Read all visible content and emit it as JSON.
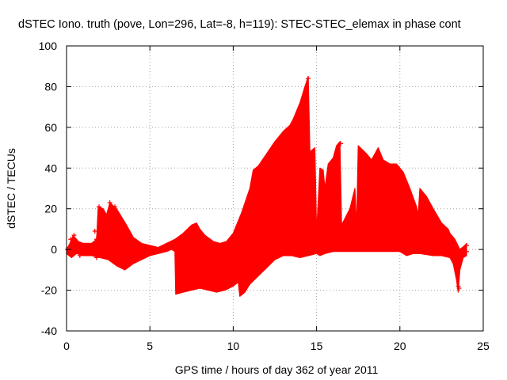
{
  "chart_data": {
    "type": "area",
    "title": "dSTEC Iono. truth (pove, Lon=296, Lat=-8, h=119): STEC-STEC_elemax in phase cont",
    "xlabel": "GPS time / hours of day 362 of year 2011",
    "ylabel": "dSTEC  / TECUs",
    "xlim": [
      0,
      25
    ],
    "ylim": [
      -40,
      100
    ],
    "xticks": [
      0,
      5,
      10,
      15,
      20,
      25
    ],
    "yticks": [
      -40,
      -20,
      0,
      20,
      40,
      60,
      80,
      100
    ],
    "grid": true,
    "color": "#ff0000",
    "series": [
      {
        "name": "dSTEC",
        "upper": [
          [
            0.0,
            0
          ],
          [
            0.2,
            3
          ],
          [
            0.4,
            7
          ],
          [
            0.7,
            4
          ],
          [
            1.0,
            3
          ],
          [
            1.5,
            3
          ],
          [
            1.8,
            5
          ],
          [
            1.9,
            21
          ],
          [
            2.2,
            20
          ],
          [
            2.4,
            17
          ],
          [
            2.6,
            23
          ],
          [
            3.0,
            20
          ],
          [
            3.3,
            16
          ],
          [
            3.6,
            12
          ],
          [
            4.0,
            6
          ],
          [
            4.5,
            3
          ],
          [
            5.0,
            2
          ],
          [
            5.5,
            1
          ],
          [
            6.0,
            3
          ],
          [
            6.5,
            5
          ],
          [
            7.0,
            8
          ],
          [
            7.5,
            12
          ],
          [
            7.8,
            13
          ],
          [
            8.0,
            10
          ],
          [
            8.3,
            7
          ],
          [
            8.8,
            4
          ],
          [
            9.2,
            3
          ],
          [
            9.6,
            4
          ],
          [
            10.0,
            8
          ],
          [
            10.5,
            18
          ],
          [
            11.0,
            30
          ],
          [
            11.2,
            39
          ],
          [
            11.5,
            41
          ],
          [
            12.0,
            47
          ],
          [
            12.5,
            53
          ],
          [
            13.0,
            58
          ],
          [
            13.4,
            61
          ],
          [
            13.6,
            64
          ],
          [
            14.0,
            72
          ],
          [
            14.3,
            80
          ],
          [
            14.5,
            85
          ],
          [
            14.6,
            48
          ],
          [
            14.9,
            50
          ],
          [
            15.0,
            8
          ],
          [
            15.2,
            40
          ],
          [
            15.4,
            39
          ],
          [
            15.5,
            30
          ],
          [
            15.7,
            42
          ],
          [
            16.0,
            45
          ],
          [
            16.2,
            51
          ],
          [
            16.4,
            53
          ],
          [
            16.5,
            12
          ],
          [
            17.0,
            20
          ],
          [
            17.3,
            30
          ],
          [
            17.4,
            10
          ],
          [
            17.5,
            51
          ],
          [
            18.0,
            47
          ],
          [
            18.3,
            44
          ],
          [
            18.7,
            50
          ],
          [
            19.0,
            44
          ],
          [
            19.4,
            42
          ],
          [
            19.8,
            42
          ],
          [
            20.2,
            38
          ],
          [
            20.6,
            30
          ],
          [
            21.0,
            21
          ],
          [
            21.1,
            17
          ],
          [
            21.2,
            30
          ],
          [
            21.6,
            26
          ],
          [
            22.0,
            20
          ],
          [
            22.5,
            13
          ],
          [
            22.9,
            10
          ],
          [
            23.0,
            8
          ],
          [
            23.3,
            5
          ],
          [
            23.6,
            0
          ],
          [
            23.9,
            2
          ],
          [
            24.0,
            3
          ]
        ],
        "lower": [
          [
            0.0,
            -2
          ],
          [
            0.3,
            -4
          ],
          [
            0.6,
            -2
          ],
          [
            1.0,
            -3
          ],
          [
            1.5,
            -3
          ],
          [
            2.0,
            -4
          ],
          [
            2.5,
            -5
          ],
          [
            3.0,
            -8
          ],
          [
            3.5,
            -10
          ],
          [
            4.0,
            -7
          ],
          [
            4.5,
            -5
          ],
          [
            5.0,
            -3
          ],
          [
            5.5,
            -2
          ],
          [
            6.0,
            -1
          ],
          [
            6.3,
            0
          ],
          [
            6.5,
            -1
          ],
          [
            6.55,
            -22
          ],
          [
            7.0,
            -21
          ],
          [
            7.5,
            -20
          ],
          [
            8.0,
            -19
          ],
          [
            8.5,
            -20
          ],
          [
            9.0,
            -21
          ],
          [
            9.5,
            -20
          ],
          [
            10.0,
            -18
          ],
          [
            10.3,
            -16
          ],
          [
            10.4,
            -23
          ],
          [
            10.7,
            -21
          ],
          [
            11.0,
            -17
          ],
          [
            11.5,
            -13
          ],
          [
            12.0,
            -9
          ],
          [
            12.5,
            -5
          ],
          [
            13.0,
            -3
          ],
          [
            13.5,
            -3
          ],
          [
            14.0,
            -4
          ],
          [
            14.5,
            -3
          ],
          [
            15.0,
            -2
          ],
          [
            15.2,
            -3
          ],
          [
            15.5,
            -2
          ],
          [
            16.0,
            -1
          ],
          [
            16.5,
            -1
          ],
          [
            17.0,
            -1
          ],
          [
            17.5,
            -1
          ],
          [
            18.0,
            -1
          ],
          [
            19.0,
            -1
          ],
          [
            20.0,
            -1
          ],
          [
            20.4,
            -3
          ],
          [
            20.8,
            -2
          ],
          [
            21.2,
            -2
          ],
          [
            22.0,
            -3
          ],
          [
            22.5,
            -3
          ],
          [
            23.0,
            -4
          ],
          [
            23.2,
            -7
          ],
          [
            23.4,
            -15
          ],
          [
            23.5,
            -21
          ],
          [
            23.6,
            -10
          ],
          [
            23.8,
            -4
          ],
          [
            24.0,
            -3
          ]
        ],
        "markers": [
          [
            0.05,
            0
          ],
          [
            0.25,
            5
          ],
          [
            0.45,
            7
          ],
          [
            0.6,
            4
          ],
          [
            1.0,
            2
          ],
          [
            1.3,
            1
          ],
          [
            1.7,
            9
          ],
          [
            1.8,
            5
          ],
          [
            1.95,
            21
          ],
          [
            2.15,
            19
          ],
          [
            2.6,
            23
          ],
          [
            2.9,
            21
          ],
          [
            0.3,
            -2
          ],
          [
            0.8,
            -3
          ],
          [
            1.2,
            -2
          ],
          [
            1.8,
            -4
          ],
          [
            2.3,
            -3
          ],
          [
            2.8,
            -4
          ],
          [
            23.55,
            -19
          ],
          [
            23.5,
            -18
          ],
          [
            24.0,
            2
          ],
          [
            24.0,
            -1
          ],
          [
            16.45,
            52
          ],
          [
            14.5,
            84
          ]
        ]
      }
    ]
  }
}
